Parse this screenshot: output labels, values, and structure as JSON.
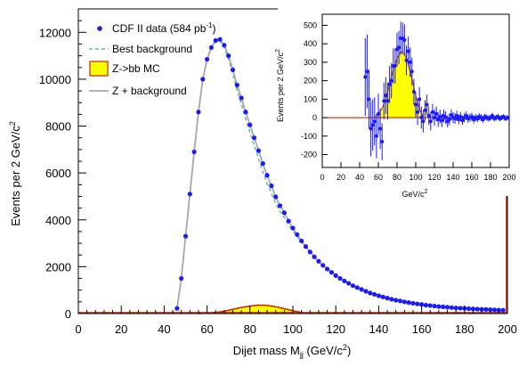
{
  "chart_data": [
    {
      "type": "scatter",
      "xlabel_main": "Dijet mass M",
      "xlabel_sub": "jj",
      "xlabel_tail": " (GeV/c",
      "xlabel_sup": "2",
      "xlabel_end": ")",
      "ylabel_main": "Events per 2 GeV/c",
      "ylabel_sup": "2",
      "xlim": [
        0,
        200
      ],
      "ylim": [
        0,
        13000
      ],
      "xticks": [
        0,
        20,
        40,
        60,
        80,
        100,
        120,
        140,
        160,
        180,
        200
      ],
      "yticks": [
        0,
        2000,
        4000,
        6000,
        8000,
        10000,
        12000
      ],
      "legend_position": "top-left",
      "legend": [
        {
          "label_main": "CDF II data (584 pb",
          "label_sup": "-1",
          "label_end": ")",
          "style": "marker",
          "color": "#1a1aff"
        },
        {
          "label_main": "Best background",
          "label_sup": "",
          "label_end": "",
          "style": "dashed",
          "color": "#5ab8a0"
        },
        {
          "label_main": "Z->bb MC",
          "label_sup": "",
          "label_end": "",
          "style": "box",
          "color": "#ffff00"
        },
        {
          "label_main": "Z + background",
          "label_sup": "",
          "label_end": "",
          "style": "line",
          "color": "#a8a8a8"
        }
      ],
      "series": [
        {
          "name": "CDF II data (584 pb-1)",
          "x": [
            46,
            48,
            50,
            52,
            54,
            56,
            58,
            60,
            62,
            64,
            66,
            68,
            70,
            72,
            74,
            76,
            78,
            80,
            82,
            84,
            86,
            88,
            90,
            92,
            94,
            96,
            98,
            100,
            102,
            104,
            106,
            108,
            110,
            112,
            114,
            116,
            118,
            120,
            122,
            124,
            126,
            128,
            130,
            132,
            134,
            136,
            138,
            140,
            142,
            144,
            146,
            148,
            150,
            152,
            154,
            156,
            158,
            160,
            162,
            164,
            166,
            168,
            170,
            172,
            174,
            176,
            178,
            180,
            182,
            184,
            186,
            188,
            190,
            192,
            194,
            196,
            198
          ],
          "y": [
            220,
            1500,
            3300,
            5100,
            6900,
            8600,
            10000,
            10850,
            11350,
            11650,
            11700,
            11450,
            11000,
            10400,
            9750,
            9200,
            8600,
            8050,
            7500,
            6950,
            6400,
            5900,
            5450,
            4980,
            4600,
            4300,
            3950,
            3650,
            3370,
            3100,
            2860,
            2630,
            2420,
            2230,
            2060,
            1900,
            1760,
            1620,
            1500,
            1390,
            1290,
            1190,
            1110,
            1030,
            950,
            880,
            820,
            760,
            710,
            660,
            610,
            570,
            540,
            500,
            470,
            440,
            410,
            390,
            360,
            340,
            320,
            300,
            285,
            270,
            255,
            240,
            230,
            220,
            210,
            200,
            190,
            180,
            175,
            165,
            160,
            150,
            145
          ]
        },
        {
          "name": "Z->bb MC",
          "x": [
            56,
            60,
            64,
            68,
            72,
            76,
            80,
            84,
            88,
            92,
            96,
            100,
            104,
            108
          ],
          "y": [
            0,
            20,
            50,
            100,
            180,
            260,
            320,
            360,
            345,
            290,
            210,
            120,
            50,
            0
          ]
        }
      ]
    },
    {
      "type": "scatter",
      "xlabel_main": "GeV/c",
      "xlabel_sup": "2",
      "ylabel_main": "Events per 2 GeV/c",
      "ylabel_sup": "2",
      "xlim": [
        0,
        200
      ],
      "ylim": [
        -270,
        560
      ],
      "xticks": [
        0,
        20,
        40,
        60,
        80,
        100,
        120,
        140,
        160,
        180,
        200
      ],
      "yticks": [
        -200,
        -100,
        0,
        100,
        200,
        300,
        400,
        500
      ],
      "series": [
        {
          "name": "data minus background",
          "x": [
            46,
            48,
            50,
            52,
            54,
            56,
            58,
            60,
            62,
            64,
            66,
            68,
            70,
            72,
            74,
            76,
            78,
            80,
            82,
            84,
            86,
            88,
            90,
            92,
            94,
            96,
            98,
            100,
            102,
            104,
            106,
            108,
            110,
            112,
            114,
            116,
            118,
            120,
            122,
            124,
            126,
            128,
            130,
            132,
            134,
            136,
            138,
            140,
            142,
            144,
            146,
            148,
            150,
            152,
            154,
            156,
            158,
            160,
            162,
            164,
            166,
            168,
            170,
            172,
            174,
            176,
            178,
            180,
            182,
            184,
            186,
            188,
            190,
            192,
            194,
            196,
            198
          ],
          "y": [
            220,
            250,
            100,
            -60,
            -40,
            -20,
            -100,
            20,
            -60,
            -130,
            90,
            120,
            90,
            180,
            200,
            280,
            280,
            370,
            380,
            430,
            430,
            420,
            310,
            360,
            300,
            250,
            140,
            70,
            30,
            100,
            0,
            -20,
            40,
            70,
            10,
            -20,
            30,
            0,
            20,
            -10,
            5,
            -15,
            10,
            0,
            -20,
            -10,
            15,
            0,
            -5,
            10,
            -10,
            5,
            -15,
            0,
            10,
            -5,
            0,
            5,
            -10,
            0,
            -5,
            5,
            0,
            -10,
            5,
            0,
            -5,
            0,
            10,
            -5,
            0,
            5,
            -5,
            0,
            5,
            -5,
            0
          ],
          "err": [
            210,
            200,
            160,
            150,
            140,
            130,
            120,
            110,
            110,
            100,
            100,
            100,
            100,
            100,
            95,
            95,
            95,
            90,
            90,
            90,
            85,
            85,
            80,
            80,
            80,
            75,
            70,
            70,
            70,
            65,
            60,
            60,
            55,
            55,
            50,
            50,
            45,
            45,
            40,
            40,
            38,
            36,
            35,
            34,
            33,
            32,
            30,
            30,
            29,
            28,
            27,
            26,
            25,
            25,
            24,
            23,
            22,
            22,
            21,
            20,
            20,
            19,
            19,
            18,
            18,
            17,
            17,
            17,
            16,
            16,
            16,
            15,
            15,
            15,
            14,
            14,
            14
          ]
        },
        {
          "name": "Z->bb MC",
          "x": [
            56,
            60,
            64,
            68,
            72,
            76,
            80,
            84,
            88,
            92,
            96,
            100,
            104,
            108
          ],
          "y": [
            0,
            20,
            50,
            100,
            180,
            260,
            320,
            360,
            345,
            290,
            210,
            120,
            50,
            0
          ]
        }
      ]
    }
  ]
}
